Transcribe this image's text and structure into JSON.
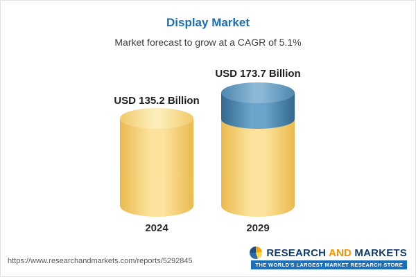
{
  "header": {
    "title": "Display Market",
    "subtitle": "Market forecast to grow at a CAGR of 5.1%"
  },
  "chart_data": {
    "type": "bar",
    "title": "Display Market",
    "subtitle": "Market forecast to grow at a CAGR of 5.1%",
    "cagr_percent": 5.1,
    "categories": [
      "2024",
      "2029"
    ],
    "values": [
      135.2,
      173.7
    ],
    "unit": "USD Billion",
    "data_labels": [
      "USD 135.2 Billion",
      "USD 173.7 Billion"
    ],
    "legend_position": "none",
    "grid": false
  },
  "bars": [
    {
      "label": "USD 135.2 Billion",
      "year": "2024"
    },
    {
      "label": "USD 173.7 Billion",
      "year": "2029"
    }
  ],
  "footer": {
    "url": "https://www.researchandmarkets.com/reports/5292845",
    "brand": {
      "word1": "RESEARCH",
      "word2": " AND ",
      "word3": "MARKETS",
      "tagline": "THE WORLD'S LARGEST MARKET RESEARCH STORE"
    }
  },
  "colors": {
    "title_blue": "#1a6fb5",
    "bar_yellow": "#f7d98b",
    "bar_blue": "#4a86ad",
    "brand_blue": "#123c6b",
    "brand_orange": "#f39200",
    "tagline_bg": "#1d70b8"
  }
}
